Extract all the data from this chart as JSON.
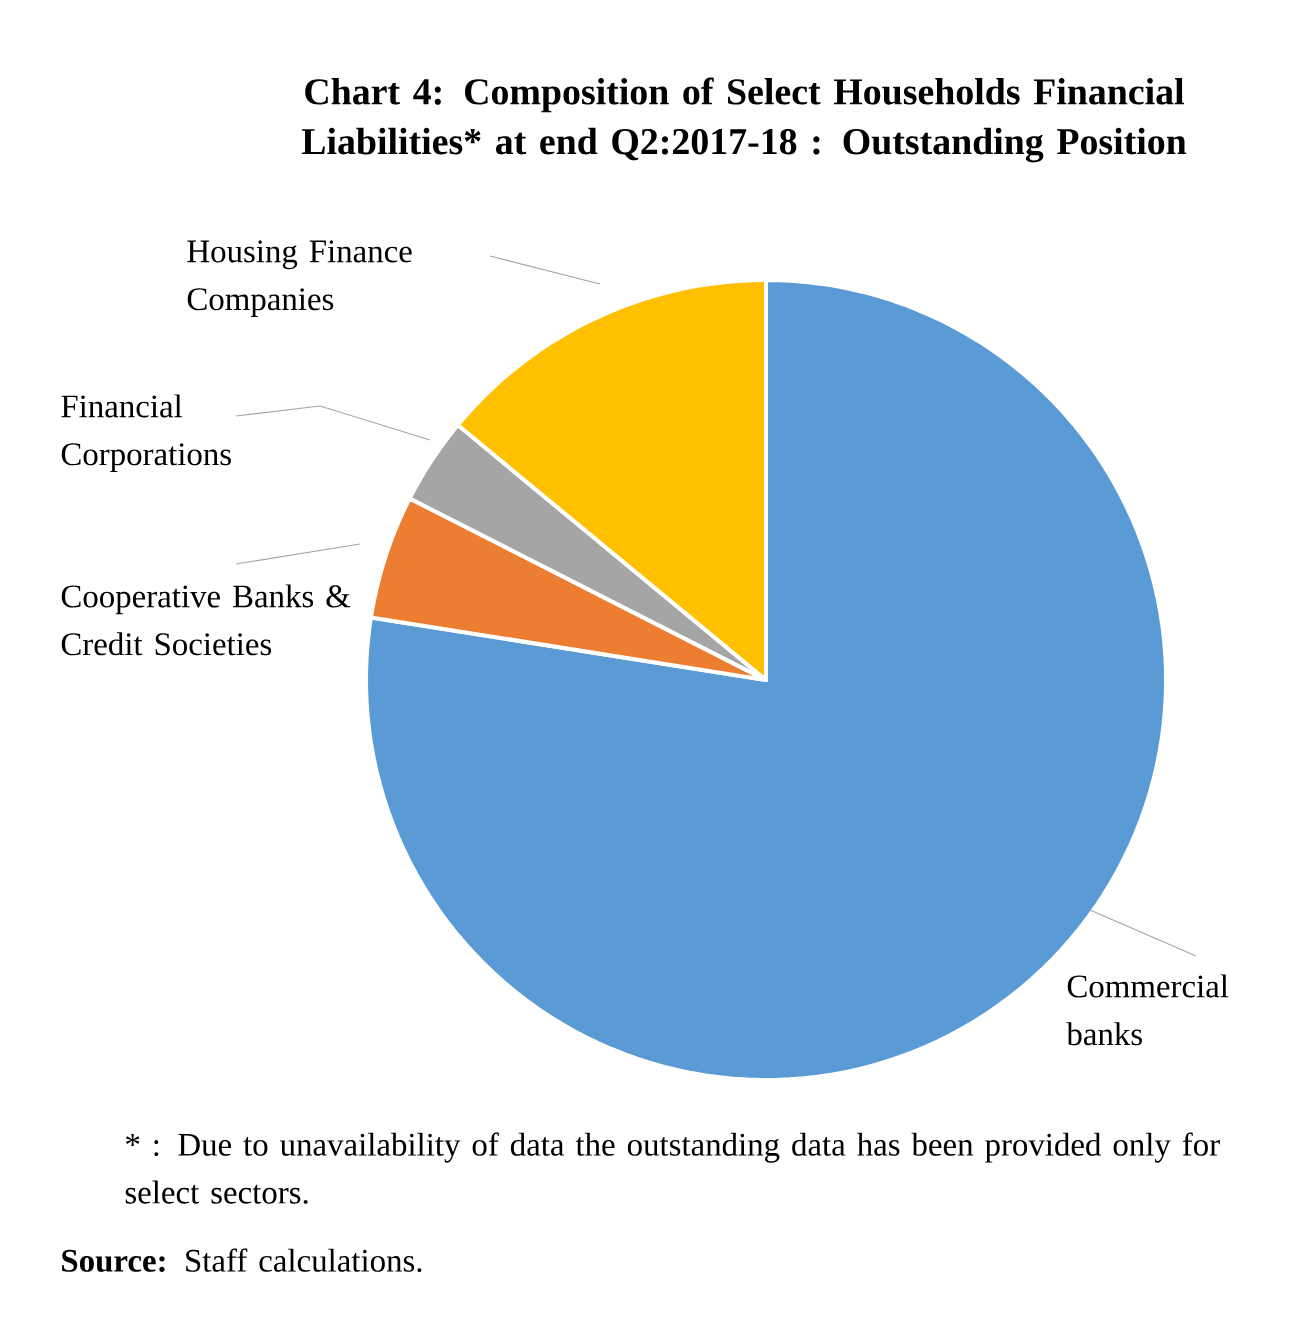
{
  "chart_data": {
    "type": "pie",
    "title": "Chart 4: Composition of Select Households Financial Liabilities* at end Q2:2017-18 : Outstanding Position",
    "categories": [
      "Commercial banks",
      "Cooperative Banks & Credit Societies",
      "Financial Corporations",
      "Housing Finance Companies"
    ],
    "values": [
      77.5,
      5,
      3.5,
      14
    ],
    "colors": [
      "#5b9bd5",
      "#ed7d31",
      "#a5a5a5",
      "#ffc000"
    ],
    "annotations": [
      "* : Due to unavailability of data the outstanding data has been provided only for select sectors.",
      "**Source:** Staff calculations."
    ]
  }
}
